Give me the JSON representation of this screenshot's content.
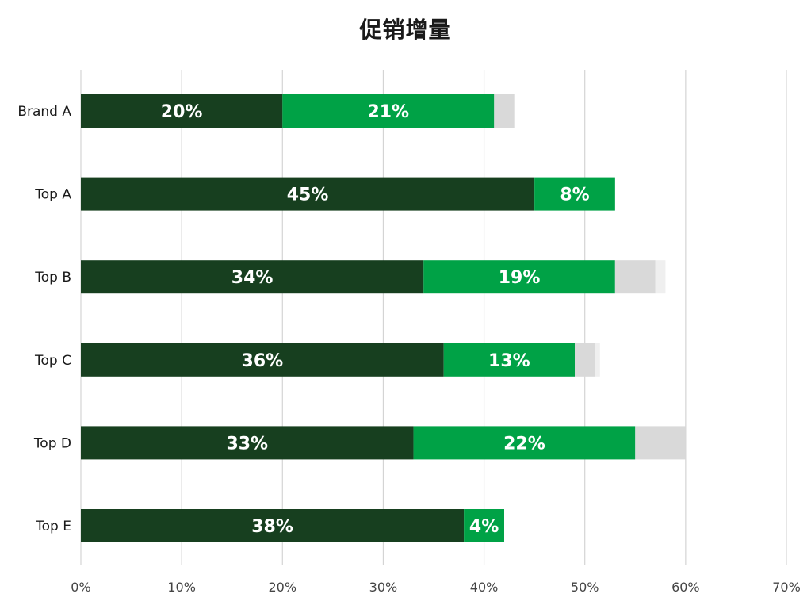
{
  "chart_data": {
    "type": "bar",
    "orientation": "horizontal",
    "stacked": true,
    "title": "促销增量",
    "xlabel": "",
    "ylabel": "",
    "xlim": [
      0,
      70
    ],
    "x_ticks": [
      "0%",
      "10%",
      "20%",
      "30%",
      "40%",
      "50%",
      "60%",
      "70%"
    ],
    "x_tick_values": [
      0,
      10,
      20,
      30,
      40,
      50,
      60,
      70
    ],
    "grid": true,
    "legend": "none",
    "categories": [
      "Brand A",
      "Top A",
      "Top B",
      "Top C",
      "Top D",
      "Top E"
    ],
    "series": [
      {
        "color": "#173f1f",
        "values": [
          20,
          45,
          34,
          36,
          33,
          38
        ],
        "labels": [
          "20%",
          "45%",
          "34%",
          "36%",
          "33%",
          "38%"
        ]
      },
      {
        "color": "#00a246",
        "values": [
          21,
          8,
          19,
          13,
          22,
          4
        ],
        "labels": [
          "21%",
          "8%",
          "19%",
          "13%",
          "22%",
          "4%"
        ]
      },
      {
        "color": "#d9d9d9",
        "values": [
          2,
          0,
          4,
          2,
          5,
          0
        ],
        "labels": [
          "",
          "",
          "",
          "",
          "",
          ""
        ]
      },
      {
        "color": "#efefef",
        "values": [
          0,
          0,
          1,
          0.5,
          0,
          0
        ],
        "labels": [
          "",
          "",
          "",
          "",
          "",
          ""
        ]
      }
    ]
  }
}
